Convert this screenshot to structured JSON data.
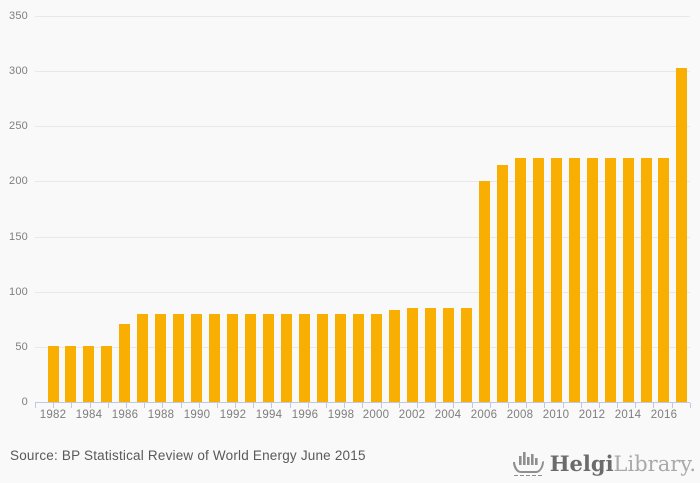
{
  "chart_data": {
    "type": "bar",
    "title": "",
    "xlabel": "",
    "ylabel": "",
    "categories": [
      1982,
      1983,
      1984,
      1985,
      1986,
      1987,
      1988,
      1989,
      1990,
      1991,
      1992,
      1993,
      1994,
      1995,
      1996,
      1997,
      1998,
      1999,
      2000,
      2001,
      2002,
      2003,
      2004,
      2005,
      2006,
      2007,
      2008,
      2009,
      2010,
      2011,
      2012,
      2013,
      2014,
      2015,
      2016,
      2017
    ],
    "values": [
      51,
      51,
      51,
      51,
      71,
      80,
      80,
      80,
      80,
      80,
      80,
      80,
      80,
      80,
      80,
      80,
      80,
      80,
      80,
      83,
      85,
      85,
      85,
      85,
      200,
      215,
      221,
      221,
      221,
      221,
      221,
      221,
      221,
      221,
      221,
      303
    ],
    "ylim": [
      0,
      350
    ],
    "yticks": [
      0,
      50,
      100,
      150,
      200,
      250,
      300,
      350
    ],
    "xtick_label_interval": 2,
    "grid": true,
    "legend_position": "none",
    "bar_color": "#F9AF02"
  },
  "footer": {
    "source": "Source: BP Statistical Review of World Energy June 2015",
    "logo_primary": "Helgi",
    "logo_secondary": "Library."
  },
  "icons": {
    "logo_icon": "viking-ship-bar-chart-icon"
  },
  "colors": {
    "background": "#F9F9F9",
    "gridline": "#E8E8E8",
    "axis": "#BFC9E4",
    "tick_label": "#7E7E7E",
    "source_text": "#595959",
    "logo_primary": "#6B6B6B",
    "logo_secondary": "#A9A9A9",
    "logo_icon": "#8F8F8F"
  }
}
